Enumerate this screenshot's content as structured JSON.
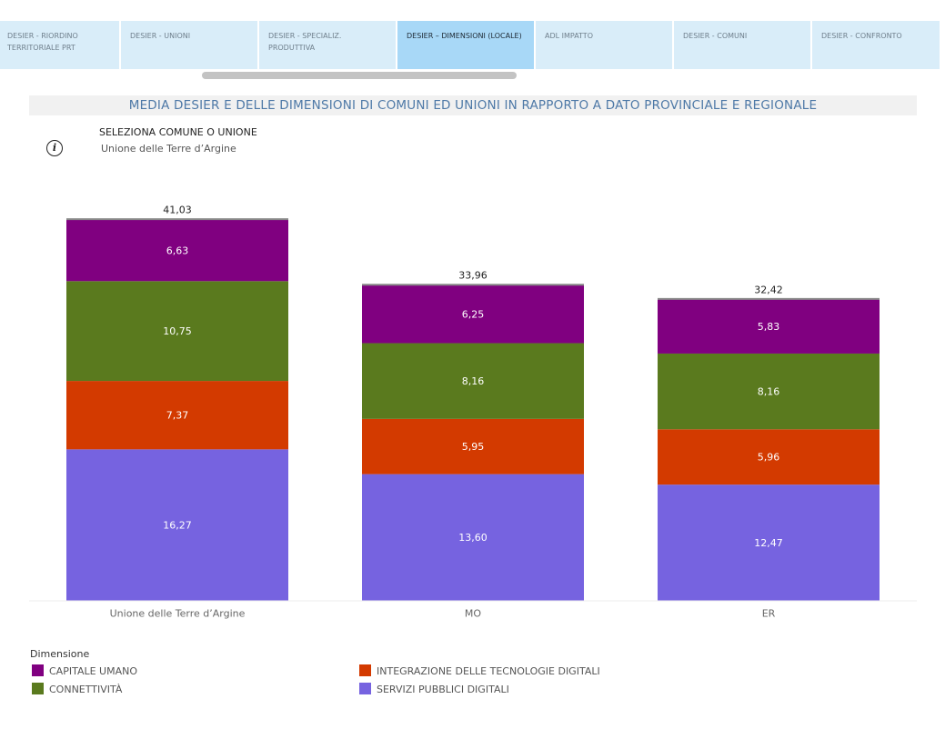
{
  "tabs": [
    {
      "label": "DESIER - RIORDINO TERRITORIALE PRT",
      "active": false
    },
    {
      "label": "DESIER - UNIONI",
      "active": false
    },
    {
      "label": "DESIER - SPECIALIZ. PRODUTTIVA",
      "active": false
    },
    {
      "label": "DESIER – DIMENSIONI (LOCALE)",
      "active": true
    },
    {
      "label": "ADL IMPATTO",
      "active": false
    },
    {
      "label": "DESIER - COMUNI",
      "active": false
    },
    {
      "label": "DESIER - CONFRONTO",
      "active": false
    }
  ],
  "header": {
    "title": "MEDIA DESIER E DELLE DIMENSIONI DI COMUNI ED UNIONI IN RAPPORTO A DATO PROVINCIALE E REGIONALE"
  },
  "filter": {
    "label": "SELEZIONA COMUNE O UNIONE",
    "value": "Unione delle Terre d’Argine"
  },
  "colors": {
    "capitale_umano": "#800080",
    "connettivita": "#5a7a1e",
    "integrazione": "#d33a00",
    "servizi": "#7663e0",
    "total_line": "#888888"
  },
  "chart_data": {
    "type": "bar",
    "stacked": true,
    "categories": [
      "Unione delle Terre d’Argine",
      "MO",
      "ER"
    ],
    "series": [
      {
        "name": "SERVIZI PUBBLICI DIGITALI",
        "key": "servizi",
        "values": [
          16.27,
          13.6,
          12.47
        ],
        "labels": [
          "16,27",
          "13,60",
          "12,47"
        ]
      },
      {
        "name": "INTEGRAZIONE DELLE TECNOLOGIE DIGITALI",
        "key": "integrazione",
        "values": [
          7.37,
          5.95,
          5.96
        ],
        "labels": [
          "7,37",
          "5,95",
          "5,96"
        ]
      },
      {
        "name": "CONNETTIVITÀ",
        "key": "connettivita",
        "values": [
          10.75,
          8.16,
          8.16
        ],
        "labels": [
          "10,75",
          "8,16",
          "8,16"
        ]
      },
      {
        "name": "CAPITALE UMANO",
        "key": "capitale_umano",
        "values": [
          6.63,
          6.25,
          5.83
        ],
        "labels": [
          "6,63",
          "6,25",
          "5,83"
        ]
      }
    ],
    "totals": [
      41.03,
      33.96,
      32.42
    ],
    "total_labels": [
      "41,03",
      "33,96",
      "32,42"
    ],
    "legend_title": "Dimensione",
    "legend": [
      {
        "name": "CAPITALE UMANO",
        "key": "capitale_umano"
      },
      {
        "name": "INTEGRAZIONE DELLE TECNOLOGIE DIGITALI",
        "key": "integrazione"
      },
      {
        "name": "CONNETTIVITÀ",
        "key": "connettivita"
      },
      {
        "name": "SERVIZI PUBBLICI DIGITALI",
        "key": "servizi"
      }
    ],
    "ylim": [
      0,
      41.03
    ]
  }
}
